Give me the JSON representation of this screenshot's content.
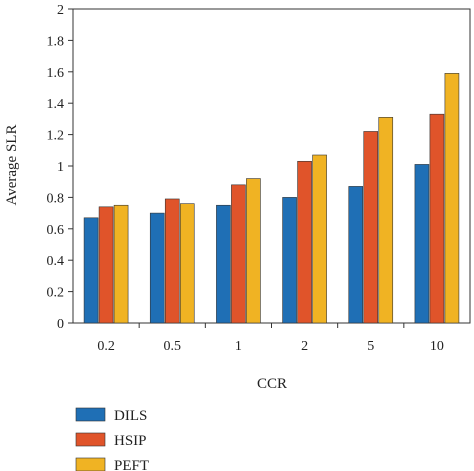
{
  "chart_data": {
    "type": "bar",
    "title": "",
    "xlabel": "CCR",
    "ylabel": "Average SLR",
    "categories": [
      "0.2",
      "0.5",
      "1",
      "2",
      "5",
      "10"
    ],
    "ylim": [
      0,
      2
    ],
    "yticks": [
      "0",
      "0.2",
      "0.4",
      "0.6",
      "0.8",
      "1",
      "1.2",
      "1.4",
      "1.6",
      "1.8",
      "2"
    ],
    "grid": false,
    "legend_position": "bottom-left",
    "series": [
      {
        "name": "DILS",
        "color": "#1f6fb5",
        "values": [
          0.67,
          0.7,
          0.75,
          0.8,
          0.87,
          1.01
        ]
      },
      {
        "name": "HSIP",
        "color": "#e0542a",
        "values": [
          0.74,
          0.79,
          0.88,
          1.03,
          1.22,
          1.33
        ]
      },
      {
        "name": "PEFT",
        "color": "#f0b323",
        "values": [
          0.75,
          0.76,
          0.92,
          1.07,
          1.31,
          1.59
        ]
      }
    ]
  }
}
